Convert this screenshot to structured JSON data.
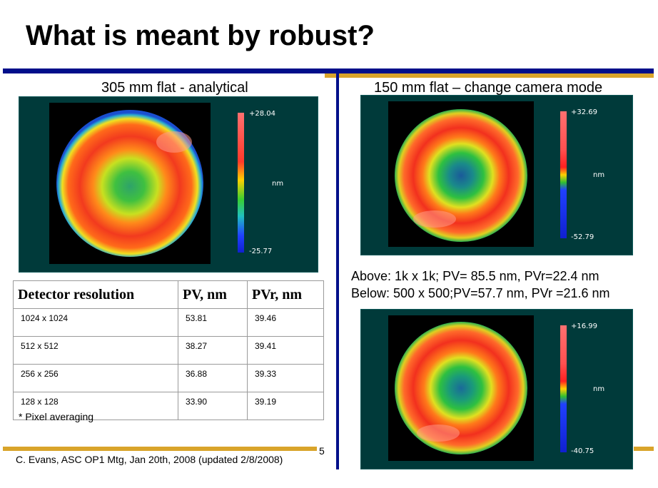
{
  "slide": {
    "title": "What is meant by robust?",
    "page_number": "5",
    "footer": "C. Evans, ASC OP1 Mtg, Jan 20th, 2008 (updated 2/8/2008)"
  },
  "colors": {
    "blue_rule": "#000f8a",
    "gold_rule": "#d9a42a",
    "panel_bg": "#003a3a"
  },
  "left_panel": {
    "caption": "305 mm flat - analytical",
    "colorbar": {
      "max": "+28.04",
      "unit": "nm",
      "min": "-25.77"
    }
  },
  "right_top_panel": {
    "caption": "150 mm flat – change camera mode",
    "colorbar": {
      "max": "+32.69",
      "unit": "nm",
      "min": "-52.79"
    }
  },
  "right_bottom_panel": {
    "colorbar": {
      "max": "+16.99",
      "unit": "nm",
      "min": "-40.75"
    }
  },
  "info": {
    "above": "Above: 1k x 1k; PV= 85.5 nm, PVr=22.4 nm",
    "below": "Below: 500 x 500;PV=57.7 nm, PVr =21.6 nm"
  },
  "table": {
    "headers": [
      "Detector resolution",
      "PV, nm",
      "PVr, nm"
    ],
    "rows": [
      [
        "1024 x 1024",
        "53.81",
        "39.46"
      ],
      [
        "512 x 512",
        "38.27",
        "39.41"
      ],
      [
        "256 x 256",
        "36.88",
        "39.33"
      ],
      [
        "128 x 128",
        "33.90",
        "39.19"
      ]
    ],
    "note": "* Pixel averaging"
  }
}
